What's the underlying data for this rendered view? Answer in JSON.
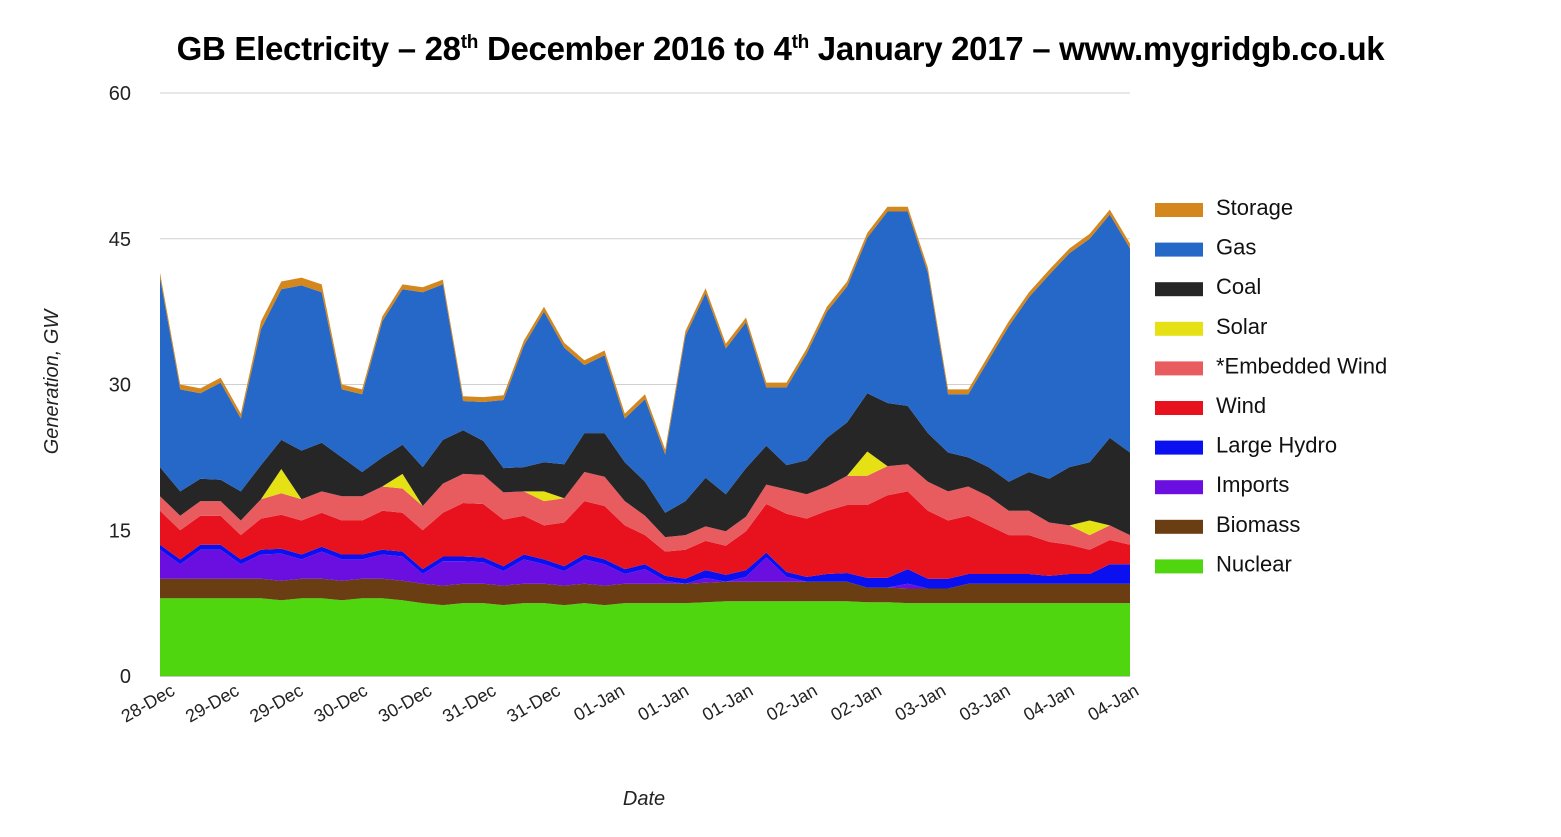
{
  "chart_data": {
    "type": "area",
    "stacked": true,
    "title_parts": [
      "GB Electricity – 28",
      "th",
      " December 2016 to 4",
      "th",
      " January 2017 – www.mygridgb.co.uk"
    ],
    "title": "GB Electricity – 28th December 2016 to 4th January 2017 – www.mygridgb.co.uk",
    "xlabel": "Date",
    "ylabel": "Generation, GW",
    "ylim": [
      0,
      60
    ],
    "yticks": [
      0,
      15,
      30,
      45,
      60
    ],
    "xticks": [
      "28-Dec",
      "29-Dec",
      "29-Dec",
      "30-Dec",
      "30-Dec",
      "31-Dec",
      "31-Dec",
      "01-Jan",
      "01-Jan",
      "01-Jan",
      "02-Jan",
      "02-Jan",
      "03-Jan",
      "03-Jan",
      "04-Jan",
      "04-Jan"
    ],
    "grid": true,
    "legend_position": "right",
    "series": [
      {
        "name": "Nuclear",
        "color": "#4fd60f",
        "values": [
          8,
          8,
          8,
          8,
          8,
          8,
          7.8,
          8,
          8,
          7.8,
          8,
          8,
          7.8,
          7.5,
          7.3,
          7.5,
          7.5,
          7.3,
          7.5,
          7.5,
          7.3,
          7.5,
          7.3,
          7.5,
          7.5,
          7.5,
          7.5,
          7.6,
          7.7,
          7.7,
          7.7,
          7.7,
          7.7,
          7.7,
          7.7,
          7.6,
          7.6,
          7.5,
          7.5,
          7.5,
          7.5,
          7.5,
          7.5,
          7.5,
          7.5,
          7.5,
          7.5,
          7.5,
          7.5
        ]
      },
      {
        "name": "Biomass",
        "color": "#6b3d12",
        "values": [
          2,
          2,
          2,
          2,
          2,
          2,
          2,
          2,
          2,
          2,
          2,
          2,
          2,
          2,
          2,
          2,
          2,
          2,
          2,
          2,
          2,
          2,
          2,
          2,
          2,
          2,
          2,
          2,
          2,
          2,
          2,
          2,
          2,
          2,
          2,
          1.5,
          1.5,
          1.5,
          1.5,
          1.5,
          2,
          2,
          2,
          2,
          2,
          2,
          2,
          2,
          2
        ]
      },
      {
        "name": "Imports",
        "color": "#6a0fe0",
        "values": [
          3,
          1.5,
          3,
          3,
          1.5,
          2.5,
          2.8,
          2,
          2.8,
          2.2,
          2,
          2.5,
          2.5,
          1,
          2.5,
          2.3,
          2.2,
          1.5,
          2.5,
          2,
          1.5,
          2.5,
          2.2,
          1,
          1.5,
          0.3,
          0,
          0.5,
          0,
          0.5,
          2.5,
          0.5,
          0,
          0,
          0,
          0,
          0,
          0.5,
          0,
          0,
          0,
          0,
          0,
          0,
          0,
          0,
          0,
          0,
          0
        ]
      },
      {
        "name": "Large Hydro",
        "color": "#0a10f0",
        "values": [
          0.5,
          0.5,
          0.5,
          0.5,
          0.5,
          0.5,
          0.5,
          0.5,
          0.5,
          0.5,
          0.5,
          0.5,
          0.5,
          0.5,
          0.5,
          0.5,
          0.5,
          0.5,
          0.5,
          0.5,
          0.5,
          0.5,
          0.5,
          0.5,
          0.5,
          0.5,
          0.5,
          0.8,
          0.7,
          0.7,
          0.5,
          0.5,
          0.5,
          0.8,
          0.9,
          1,
          1,
          1.5,
          1,
          1,
          1,
          1,
          1,
          1,
          0.8,
          1,
          1,
          2,
          2
        ]
      },
      {
        "name": "Wind",
        "color": "#e8121e",
        "values": [
          3.5,
          3,
          3,
          3,
          2.5,
          3.2,
          3.5,
          3.5,
          3.5,
          3.5,
          3.5,
          4,
          4,
          4,
          4.5,
          5.5,
          5.5,
          4.8,
          4,
          3.5,
          4.5,
          5.5,
          5.5,
          4.5,
          3,
          2.5,
          3,
          3,
          3,
          4,
          5,
          6,
          6,
          6.5,
          7,
          7.5,
          8.5,
          8,
          7,
          6,
          6,
          5,
          4,
          4,
          3.5,
          3,
          2.5,
          2.5,
          2
        ]
      },
      {
        "name": "*Embedded Wind",
        "color": "#e85c60",
        "values": [
          1.5,
          1.5,
          1.5,
          1.5,
          1.5,
          2,
          2.2,
          2.2,
          2.2,
          2.5,
          2.5,
          2.5,
          2.5,
          2.5,
          3,
          3,
          3,
          2.8,
          2.5,
          2.5,
          2.5,
          3,
          3,
          2.5,
          2,
          1.5,
          1.5,
          1.5,
          1.5,
          1.5,
          2,
          2.5,
          2.5,
          2.5,
          3,
          3,
          3,
          2.8,
          3,
          3,
          3,
          3,
          2.5,
          2.5,
          2,
          2,
          1.5,
          1.5,
          1
        ]
      },
      {
        "name": "Solar",
        "color": "#e6e115",
        "values": [
          0,
          0,
          0,
          0,
          0,
          0,
          2.5,
          0,
          0,
          0,
          0,
          0,
          1.5,
          0,
          0,
          0,
          0,
          0,
          0,
          1,
          0,
          0,
          0,
          0,
          0,
          0,
          0,
          0,
          0,
          0,
          0,
          0,
          0,
          0,
          0,
          2.5,
          0,
          0,
          0,
          0,
          0,
          0,
          0,
          0,
          0,
          0,
          1.5,
          0,
          0
        ]
      },
      {
        "name": "Coal",
        "color": "#262626",
        "values": [
          3,
          2.5,
          2.3,
          2.2,
          3,
          3.5,
          3,
          5,
          5,
          4,
          2.5,
          3,
          3,
          4,
          4.5,
          4.5,
          3.5,
          2.5,
          2.5,
          3,
          3.5,
          4,
          4.5,
          4,
          3.5,
          2.5,
          3.5,
          5,
          3.8,
          5,
          4,
          2.5,
          3.5,
          5,
          5.5,
          6,
          6.5,
          6,
          5,
          4,
          3,
          3,
          3,
          4,
          4.5,
          6,
          6,
          9,
          8.5
        ]
      },
      {
        "name": "Gas",
        "color": "#2668c8",
        "values": [
          19.5,
          10.5,
          8.8,
          10,
          7.5,
          14,
          15.5,
          17,
          15.5,
          7,
          8,
          14,
          16,
          18,
          16,
          3,
          4,
          7,
          12.5,
          15.5,
          12,
          7,
          8,
          4.5,
          8.5,
          6,
          17,
          19,
          15,
          15,
          6,
          8,
          11,
          13,
          14,
          16,
          19.7,
          20,
          16.5,
          6,
          6.5,
          11,
          16,
          18,
          21,
          22,
          23,
          23,
          21
        ]
      },
      {
        "name": "Storage",
        "color": "#d4871c",
        "values": [
          0.5,
          0.5,
          0.5,
          0.5,
          0.5,
          0.8,
          0.8,
          0.8,
          0.8,
          0.5,
          0.5,
          0.5,
          0.5,
          0.5,
          0.5,
          0.5,
          0.5,
          0.5,
          0.5,
          0.5,
          0.5,
          0.5,
          0.5,
          0.5,
          0.5,
          0.5,
          0.5,
          0.5,
          0.5,
          0.5,
          0.5,
          0.5,
          0.5,
          0.5,
          0.5,
          0.5,
          0.5,
          0.5,
          0.5,
          0.5,
          0.5,
          0.5,
          0.5,
          0.5,
          0.5,
          0.5,
          0.5,
          0.5,
          0.5
        ]
      }
    ],
    "legend_order": [
      "Storage",
      "Gas",
      "Coal",
      "Solar",
      "*Embedded Wind",
      "Wind",
      "Large Hydro",
      "Imports",
      "Biomass",
      "Nuclear"
    ]
  }
}
